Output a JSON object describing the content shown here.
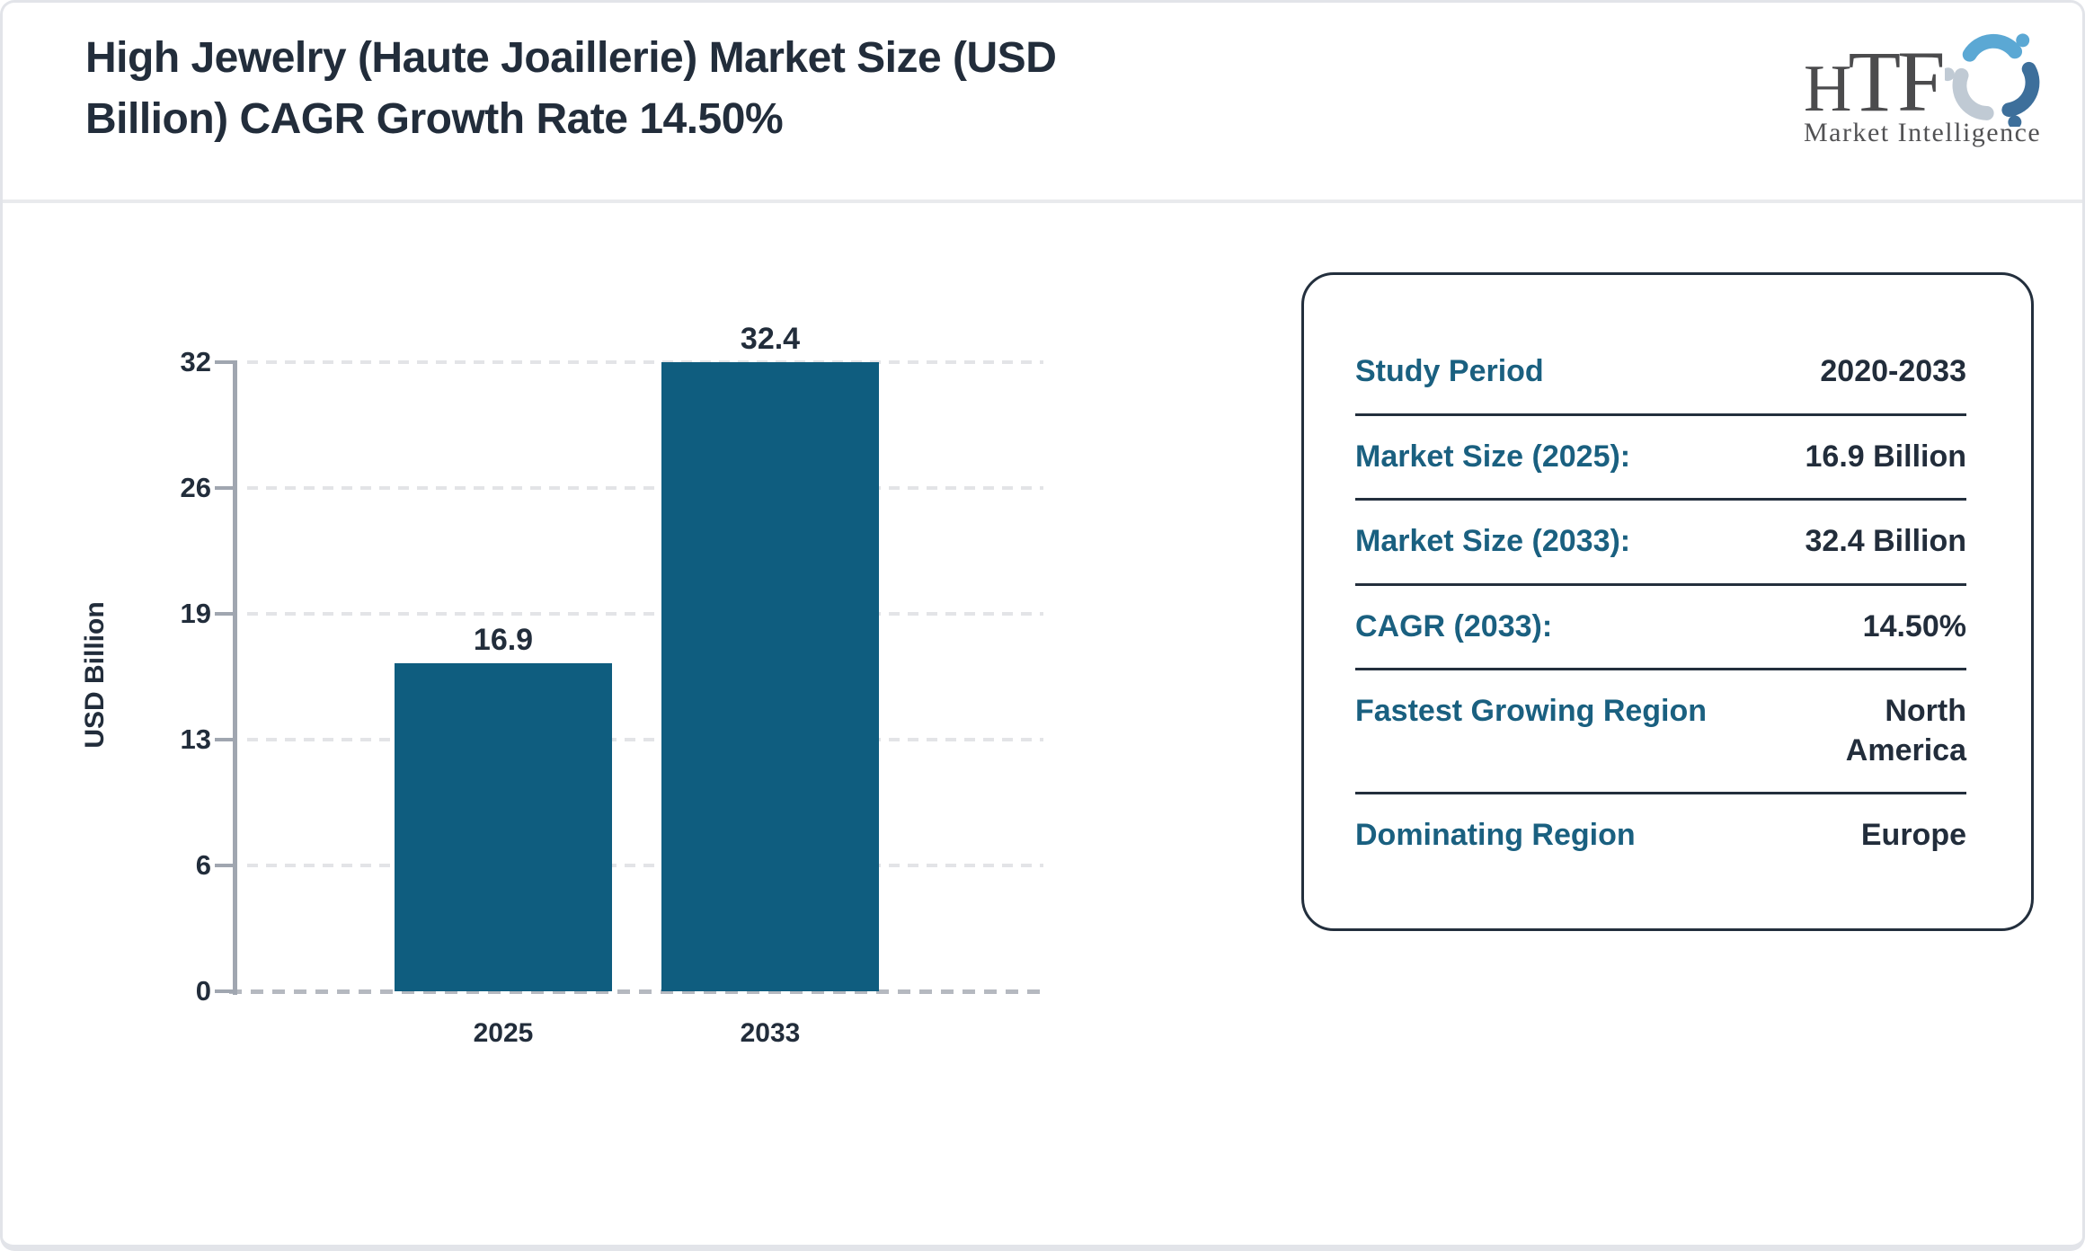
{
  "header": {
    "title_lines": [
      "High Jewelry (Haute Joaillerie) Market Size (USD",
      "Billion) CAGR Growth Rate 14.50%"
    ]
  },
  "logo": {
    "brand_letters": [
      "H",
      "T",
      "F"
    ],
    "tagline": "Market Intelligence",
    "colors": {
      "text": "#4b4b4d",
      "figure_light_blue": "#5ba8d4",
      "figure_steel_blue": "#3d6f9b",
      "figure_gray": "#c0cad4"
    }
  },
  "chart_data": {
    "type": "bar",
    "title": "High Jewelry (Haute Joaillerie) Market Size (USD Billion) CAGR Growth Rate 14.50%",
    "categories": [
      "2025",
      "2033"
    ],
    "values": [
      16.9,
      32.4
    ],
    "value_labels": [
      "16.9",
      "32.4"
    ],
    "xlabel": "",
    "ylabel": "USD Billion",
    "ylim": [
      0,
      32.4
    ],
    "yticks": [
      0,
      6,
      13,
      19,
      26,
      32
    ],
    "grid": "horizontal-dashed",
    "legend": "none",
    "bar_color": "#0f5d7f",
    "axis_color": "#a0a6b0",
    "text_color": "#222d3b"
  },
  "info_panel": {
    "label_color": "#1a6080",
    "value_color": "#222d3b",
    "rows": [
      {
        "label": "Study Period",
        "value": "2020-2033"
      },
      {
        "label": "Market Size (2025):",
        "value": "16.9 Billion"
      },
      {
        "label": "Market Size (2033):",
        "value": "32.4 Billion"
      },
      {
        "label": "CAGR (2033):",
        "value": "14.50%"
      },
      {
        "label": "Fastest Growing Region",
        "value": "North America"
      },
      {
        "label": "Dominating Region",
        "value": "Europe"
      }
    ]
  }
}
